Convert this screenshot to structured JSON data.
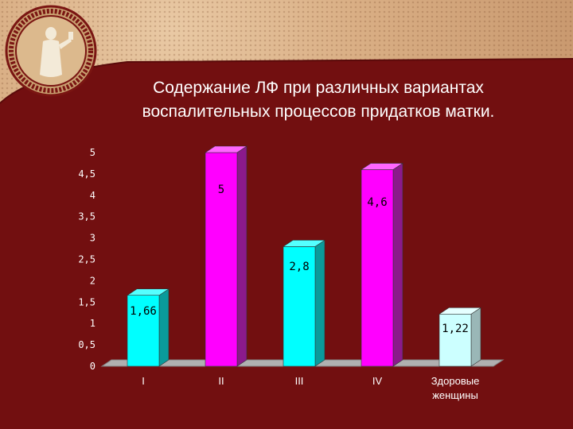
{
  "title_line1": "Содержание ЛФ при различных вариантах",
  "title_line2": "воспалительных процессов придатков матки.",
  "chart_data": {
    "type": "bar",
    "title": "Содержание ЛФ при различных вариантах воспалительных процессов придатков матки.",
    "categories": [
      "I",
      "II",
      "III",
      "IV",
      "Здоровые женщины"
    ],
    "category_lines": [
      [
        "I"
      ],
      [
        "II"
      ],
      [
        "III"
      ],
      [
        "IV"
      ],
      [
        "Здоровые",
        "женщины"
      ]
    ],
    "values": [
      1.66,
      5,
      2.8,
      4.6,
      1.22
    ],
    "data_labels": [
      "1,66",
      "5",
      "2,8",
      "4,6",
      "1,22"
    ],
    "y_ticks": [
      "0",
      "0,5",
      "1",
      "1,5",
      "2",
      "2,5",
      "3",
      "3,5",
      "4",
      "4,5",
      "5"
    ],
    "ylim": [
      0,
      5
    ],
    "grid": false,
    "bar_colors": [
      "#00ffff",
      "#ff00ff",
      "#00ffff",
      "#ff00ff",
      "#ccffff"
    ],
    "side_colors": [
      "#0a9b9b",
      "#8b1a8b",
      "#0a9b9b",
      "#8b1a8b",
      "#9ab7b7"
    ],
    "top_colors": [
      "#55ffff",
      "#ff66ff",
      "#55ffff",
      "#ff66ff",
      "#e6ffff"
    ]
  }
}
